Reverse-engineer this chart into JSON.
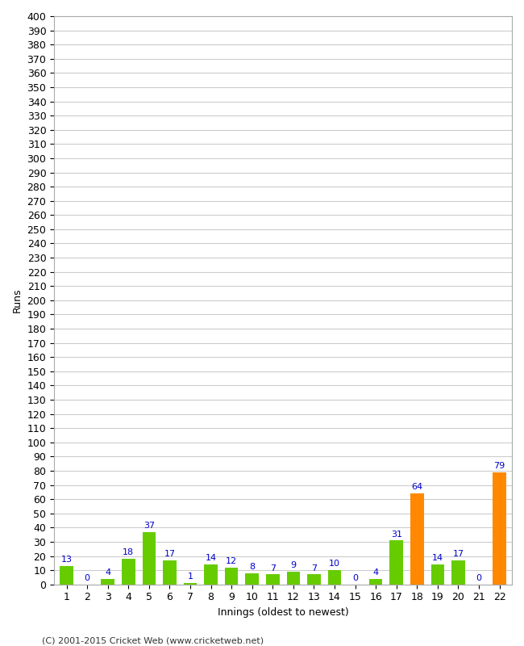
{
  "title": "",
  "xlabel": "Innings (oldest to newest)",
  "ylabel": "Runs",
  "categories": [
    "1",
    "2",
    "3",
    "4",
    "5",
    "6",
    "7",
    "8",
    "9",
    "10",
    "11",
    "12",
    "13",
    "14",
    "15",
    "16",
    "17",
    "18",
    "19",
    "20",
    "21",
    "22"
  ],
  "values": [
    13,
    0,
    4,
    18,
    37,
    17,
    1,
    14,
    12,
    8,
    7,
    9,
    7,
    10,
    0,
    4,
    31,
    64,
    14,
    17,
    0,
    79
  ],
  "bar_colors": [
    "#66cc00",
    "#66cc00",
    "#66cc00",
    "#66cc00",
    "#66cc00",
    "#66cc00",
    "#66cc00",
    "#66cc00",
    "#66cc00",
    "#66cc00",
    "#66cc00",
    "#66cc00",
    "#66cc00",
    "#66cc00",
    "#66cc00",
    "#66cc00",
    "#66cc00",
    "#ff8800",
    "#66cc00",
    "#66cc00",
    "#66cc00",
    "#ff8800"
  ],
  "label_color": "#0000cc",
  "ylim": [
    0,
    400
  ],
  "ytick_step": 10,
  "background_color": "#ffffff",
  "plot_bg_color": "#ffffff",
  "grid_color": "#cccccc",
  "footer": "(C) 2001-2015 Cricket Web (www.cricketweb.net)",
  "axis_fontsize": 9,
  "label_fontsize": 8,
  "footer_fontsize": 8,
  "bar_width": 0.65
}
